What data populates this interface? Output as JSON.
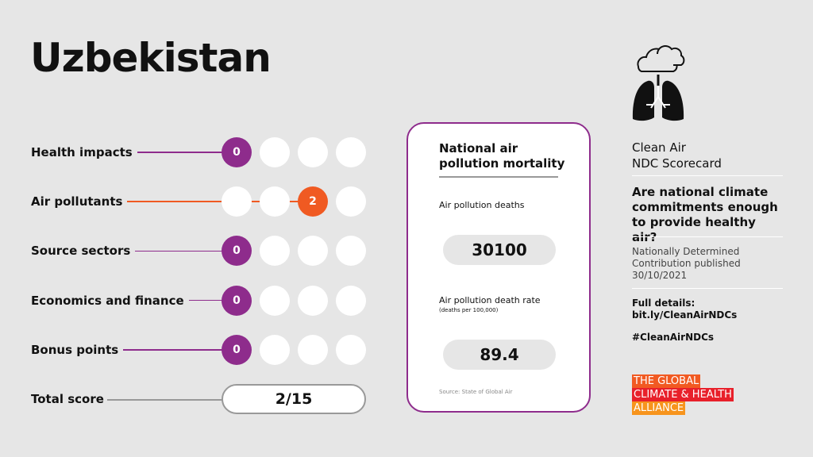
{
  "title": "Uzbekistan",
  "rows": [
    {
      "name": "Health impacts",
      "score": 0,
      "color": "#8e2c8c"
    },
    {
      "name": "Air pollutants",
      "score": 2,
      "color": "#f05a22"
    },
    {
      "name": "Source sectors",
      "score": 0,
      "color": "#8e2c8c"
    },
    {
      "name": "Economics and finance",
      "score": 0,
      "color": "#8e2c8c"
    },
    {
      "name": "Bonus points",
      "score": 0,
      "color": "#8e2c8c"
    }
  ],
  "total": {
    "label": "Total score",
    "value": "2/15"
  },
  "card": {
    "title_lines": [
      "National air",
      "pollution mortality"
    ],
    "deaths_label": "Air pollution deaths",
    "deaths": 30100,
    "rate_label": "Air pollution death rate",
    "rate_unit": "(deaths per 100,000)",
    "rate": 89.4,
    "source": "Source: State of Global Air"
  },
  "sidebar": {
    "heading_lines": [
      "Clean Air",
      "NDC Scorecard"
    ],
    "question_lines": [
      "Are national climate",
      "commitments enough",
      "to provide healthy air?"
    ],
    "ndc_lines": [
      "Nationally Determined",
      "Contribution published",
      "30/10/2021"
    ],
    "details_label": "Full details:",
    "details_link": "bit.ly/CleanAirNDCs",
    "hashtag": "#CleanAirNDCs",
    "logo_lines": [
      "THE GLOBAL",
      "CLIMATE & HEALTH",
      "ALLIANCE"
    ]
  }
}
